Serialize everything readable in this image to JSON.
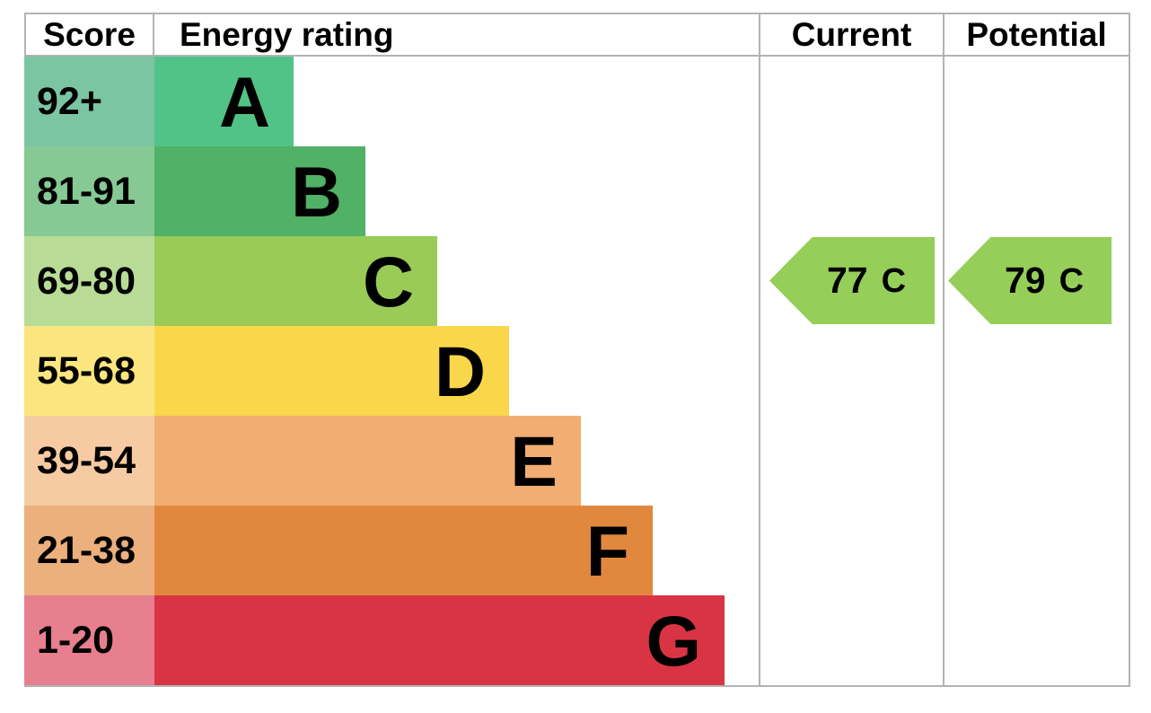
{
  "header": {
    "score": "Score",
    "energy_rating": "Energy rating",
    "current": "Current",
    "potential": "Potential"
  },
  "chart_data": {
    "type": "bar",
    "subtype": "epc-energy-rating",
    "columns": [
      "Score",
      "Energy rating",
      "Current",
      "Potential"
    ],
    "bands": [
      {
        "score_range": "92+",
        "letter": "A",
        "score_color": "#7cc5a2",
        "bar_color": "#52c386"
      },
      {
        "score_range": "81-91",
        "letter": "B",
        "score_color": "#86c995",
        "bar_color": "#51b166"
      },
      {
        "score_range": "69-80",
        "letter": "C",
        "score_color": "#b8dc96",
        "bar_color": "#99cb56"
      },
      {
        "score_range": "55-68",
        "letter": "D",
        "score_color": "#fbe57e",
        "bar_color": "#f9d64a"
      },
      {
        "score_range": "39-54",
        "letter": "E",
        "score_color": "#f6cba3",
        "bar_color": "#f2ad72"
      },
      {
        "score_range": "21-38",
        "letter": "F",
        "score_color": "#ebb07d",
        "bar_color": "#e2883e"
      },
      {
        "score_range": "1-20",
        "letter": "G",
        "score_color": "#e77f8e",
        "bar_color": "#d93444"
      }
    ],
    "current": {
      "value": "77",
      "band": "C",
      "arrow_color": "#95ce58"
    },
    "potential": {
      "value": "79",
      "band": "C",
      "arrow_color": "#95ce58"
    }
  },
  "colors": {
    "border": "#b3b3b3",
    "text": "#000000",
    "background": "#ffffff"
  }
}
